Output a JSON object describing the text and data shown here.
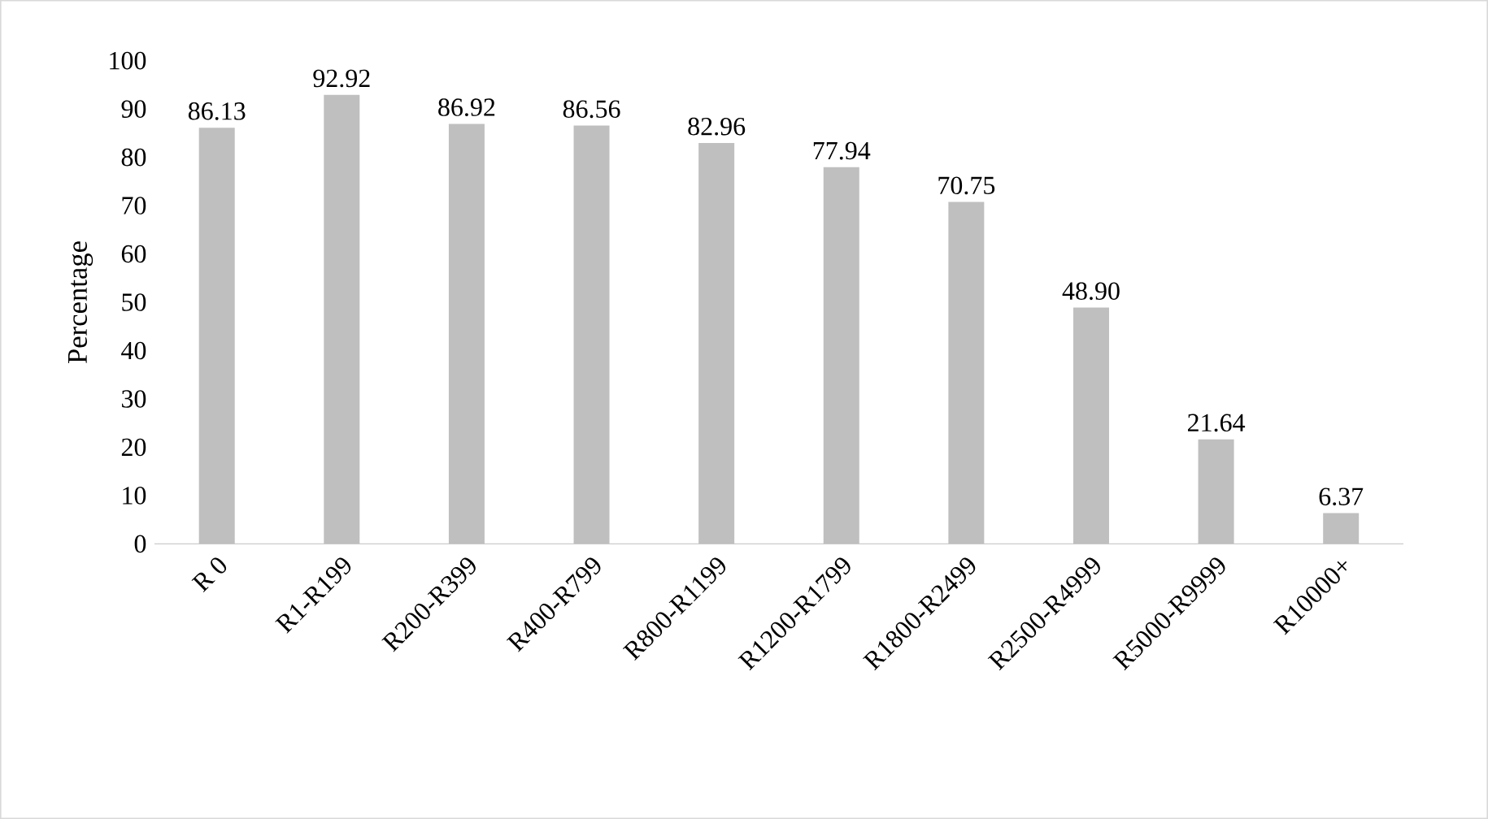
{
  "chart_data": {
    "type": "bar",
    "ylabel": "Percentage",
    "categories": [
      "R 0",
      "R1-R199",
      "R200-R399",
      "R400-R799",
      "R800-R1199",
      "R1200-R1799",
      "R1800-R2499",
      "R2500-R4999",
      "R5000-R9999",
      "R10000+"
    ],
    "values": [
      86.13,
      92.92,
      86.92,
      86.56,
      82.96,
      77.94,
      70.75,
      48.9,
      21.64,
      6.37
    ],
    "value_labels": [
      "86.13",
      "92.92",
      "86.92",
      "86.56",
      "82.96",
      "77.94",
      "70.75",
      "48.90",
      "21.64",
      "6.37"
    ],
    "color": "#bfbfbf",
    "ylim": [
      0,
      100
    ],
    "yticks": [
      0,
      10,
      20,
      30,
      40,
      50,
      60,
      70,
      80,
      90,
      100
    ]
  }
}
